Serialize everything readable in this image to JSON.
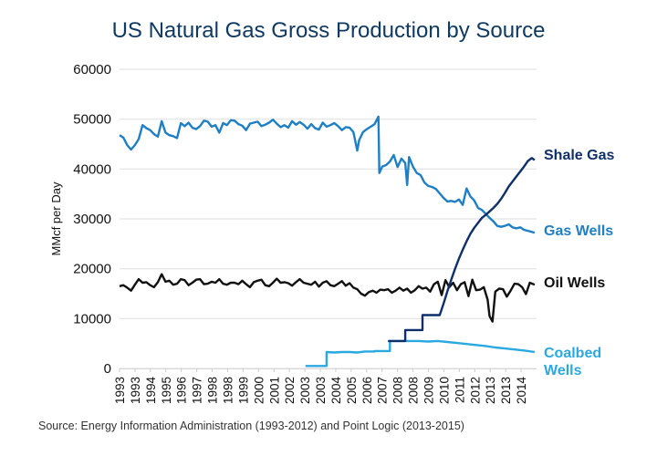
{
  "chart_data": {
    "type": "line",
    "title": "US Natural Gas Gross Production by Source",
    "xlabel": "",
    "ylabel": "MMcf per Day",
    "ylim": [
      0,
      60000
    ],
    "xlim": [
      1993.0,
      2014.75
    ],
    "yticks": [
      0,
      10000,
      20000,
      30000,
      40000,
      50000,
      60000
    ],
    "ytick_labels": [
      "0",
      "10000",
      "20000",
      "30000",
      "40000",
      "50000",
      "60000"
    ],
    "xtick_labels": [
      "1993",
      "1993",
      "1994",
      "1995",
      "1996",
      "1997",
      "1998",
      "1998",
      "1999",
      "2000",
      "2001",
      "2002",
      "2003",
      "2003",
      "2004",
      "2005",
      "2006",
      "2007",
      "2008",
      "2008",
      "2009",
      "2010",
      "2011",
      "2012",
      "2013",
      "2013",
      "2014"
    ],
    "grid": true,
    "legend": "inline-right",
    "source": "Source: Energy Information Administration (1993-2012) and Point Logic (2013-2015)",
    "series": [
      {
        "name": "Shale Gas",
        "label_lines": [
          "Shale Gas"
        ],
        "color": "#0f2f6b",
        "x": [
          2007.0,
          2007.9,
          2007.9,
          2008.8,
          2008.8,
          2009.7,
          2009.9,
          2010.1,
          2010.3,
          2010.5,
          2010.7,
          2010.9,
          2011.1,
          2011.3,
          2011.5,
          2011.7,
          2011.9,
          2012.1,
          2012.3,
          2012.5,
          2012.7,
          2012.9,
          2013.1,
          2013.3,
          2013.5,
          2013.7,
          2013.9,
          2014.1,
          2014.3,
          2014.5,
          2014.65
        ],
        "values": [
          5500,
          5500,
          7700,
          7700,
          10700,
          10700,
          13000,
          15500,
          17800,
          20000,
          22000,
          23800,
          25500,
          27000,
          28200,
          29200,
          30200,
          30800,
          31500,
          32200,
          33000,
          34000,
          35200,
          36500,
          37500,
          38500,
          39500,
          40500,
          41600,
          42200,
          41800
        ]
      },
      {
        "name": "Gas Wells",
        "label_lines": [
          "Gas Wells"
        ],
        "color": "#1f7fc4",
        "x": [
          1993.0,
          1993.2,
          1993.4,
          1993.6,
          1993.8,
          1994.0,
          1994.2,
          1994.4,
          1994.6,
          1994.8,
          1995.0,
          1995.2,
          1995.4,
          1995.6,
          1995.8,
          1996.0,
          1996.2,
          1996.4,
          1996.6,
          1996.8,
          1997.0,
          1997.2,
          1997.4,
          1997.6,
          1997.8,
          1998.0,
          1998.2,
          1998.4,
          1998.6,
          1998.8,
          1999.0,
          1999.2,
          1999.4,
          1999.6,
          1999.8,
          2000.0,
          2000.2,
          2000.4,
          2000.6,
          2000.8,
          2001.0,
          2001.2,
          2001.4,
          2001.6,
          2001.8,
          2002.0,
          2002.2,
          2002.4,
          2002.6,
          2002.8,
          2003.0,
          2003.2,
          2003.4,
          2003.6,
          2003.8,
          2004.0,
          2004.2,
          2004.4,
          2004.6,
          2004.8,
          2005.0,
          2005.2,
          2005.4,
          2005.5,
          2005.7,
          2005.9,
          2006.1,
          2006.3,
          2006.5,
          2006.55,
          2006.7,
          2006.9,
          2007.1,
          2007.3,
          2007.5,
          2007.7,
          2007.9,
          2008.0,
          2008.1,
          2008.3,
          2008.5,
          2008.7,
          2008.9,
          2009.1,
          2009.3,
          2009.5,
          2009.7,
          2009.9,
          2010.1,
          2010.3,
          2010.5,
          2010.7,
          2010.9,
          2011.1,
          2011.3,
          2011.5,
          2011.7,
          2011.9,
          2012.1,
          2012.3,
          2012.5,
          2012.7,
          2012.9,
          2013.1,
          2013.3,
          2013.5,
          2013.7,
          2013.9,
          2014.1,
          2014.3,
          2014.5,
          2014.65
        ],
        "values": [
          46800,
          46300,
          44800,
          43900,
          44800,
          46000,
          48800,
          48200,
          47800,
          47000,
          46500,
          49600,
          47300,
          46800,
          46600,
          46200,
          49200,
          48600,
          49300,
          48300,
          48000,
          48600,
          49700,
          49500,
          48500,
          48800,
          47300,
          49200,
          48800,
          49800,
          49700,
          49000,
          48700,
          47800,
          49100,
          49300,
          49500,
          48600,
          48900,
          49300,
          49900,
          49100,
          48400,
          48800,
          48300,
          49600,
          48900,
          49400,
          48900,
          48100,
          49000,
          48200,
          47900,
          49300,
          48500,
          48800,
          49200,
          48600,
          47800,
          48400,
          48300,
          47400,
          43700,
          45800,
          47400,
          48000,
          48500,
          49000,
          50500,
          39200,
          40500,
          40800,
          41500,
          42800,
          40400,
          42100,
          41200,
          36800,
          42400,
          40500,
          39200,
          38800,
          37300,
          36600,
          36400,
          36000,
          35100,
          34200,
          33500,
          33600,
          33400,
          33900,
          32800,
          36100,
          34500,
          33700,
          32200,
          31800,
          31000,
          30200,
          29500,
          28600,
          28400,
          28600,
          28900,
          28300,
          28100,
          28300,
          27800,
          27600,
          27400,
          27200
        ]
      },
      {
        "name": "Oil Wells",
        "label_lines": [
          "Oil Wells"
        ],
        "color": "#111111",
        "x": [
          1993.0,
          1993.2,
          1993.4,
          1993.6,
          1993.8,
          1994.0,
          1994.2,
          1994.4,
          1994.6,
          1994.8,
          1995.0,
          1995.2,
          1995.4,
          1995.6,
          1995.8,
          1996.0,
          1996.2,
          1996.4,
          1996.6,
          1996.8,
          1997.0,
          1997.2,
          1997.4,
          1997.6,
          1997.8,
          1998.0,
          1998.2,
          1998.4,
          1998.6,
          1998.8,
          1999.0,
          1999.2,
          1999.4,
          1999.6,
          1999.8,
          2000.0,
          2000.2,
          2000.4,
          2000.6,
          2000.8,
          2001.0,
          2001.2,
          2001.4,
          2001.6,
          2001.8,
          2002.0,
          2002.2,
          2002.4,
          2002.6,
          2002.8,
          2003.0,
          2003.2,
          2003.4,
          2003.6,
          2003.8,
          2004.0,
          2004.2,
          2004.4,
          2004.6,
          2004.8,
          2005.0,
          2005.2,
          2005.4,
          2005.6,
          2005.8,
          2006.0,
          2006.2,
          2006.4,
          2006.6,
          2006.8,
          2007.0,
          2007.2,
          2007.4,
          2007.6,
          2007.8,
          2008.0,
          2008.2,
          2008.4,
          2008.6,
          2008.8,
          2009.0,
          2009.2,
          2009.4,
          2009.6,
          2009.8,
          2010.0,
          2010.2,
          2010.4,
          2010.6,
          2010.8,
          2011.0,
          2011.2,
          2011.4,
          2011.6,
          2011.8,
          2012.0,
          2012.2,
          2012.3,
          2012.45,
          2012.6,
          2012.8,
          2013.0,
          2013.2,
          2013.4,
          2013.6,
          2013.8,
          2014.0,
          2014.2,
          2014.4,
          2014.65
        ],
        "values": [
          16500,
          16700,
          16200,
          15600,
          16800,
          17900,
          17200,
          17300,
          16700,
          16300,
          17300,
          18900,
          17400,
          17600,
          16800,
          17000,
          17900,
          17700,
          16700,
          17200,
          17800,
          17900,
          16900,
          17000,
          17400,
          17200,
          17900,
          17000,
          16800,
          17200,
          17200,
          16900,
          17600,
          16900,
          16300,
          17300,
          17600,
          17800,
          16700,
          16500,
          17200,
          18000,
          17200,
          17300,
          17100,
          16600,
          17300,
          17900,
          17200,
          17000,
          16800,
          17400,
          16400,
          17200,
          17500,
          16700,
          16500,
          17000,
          17500,
          16600,
          17100,
          16200,
          15900,
          15000,
          14600,
          15300,
          15600,
          15200,
          15800,
          15700,
          15900,
          15200,
          15600,
          16200,
          15600,
          16000,
          15200,
          15700,
          16500,
          16000,
          16200,
          15400,
          16900,
          17400,
          14700,
          17700,
          16300,
          17200,
          15700,
          16900,
          17300,
          14500,
          17800,
          15700,
          15800,
          16300,
          13800,
          10500,
          9400,
          15400,
          16000,
          15900,
          14400,
          15600,
          17000,
          16900,
          16300,
          14900,
          17200,
          16800
        ]
      },
      {
        "name": "Coalbed Wells",
        "label_lines": [
          "Coalbed",
          "Wells"
        ],
        "color": "#2aa8e0",
        "x": [
          2002.7,
          2003.8,
          2003.8,
          2004.2,
          2004.6,
          2005.0,
          2005.4,
          2005.8,
          2006.3,
          2006.3,
          2006.9,
          2007.1,
          2007.1,
          2007.6,
          2008.1,
          2008.6,
          2009.1,
          2009.6,
          2010.1,
          2010.6,
          2011.1,
          2011.6,
          2012.1,
          2012.6,
          2013.1,
          2013.6,
          2014.1,
          2014.65
        ],
        "values": [
          500,
          500,
          3300,
          3200,
          3300,
          3300,
          3200,
          3400,
          3400,
          3500,
          3500,
          3500,
          5500,
          5500,
          5500,
          5500,
          5400,
          5500,
          5300,
          5100,
          4900,
          4700,
          4500,
          4200,
          4000,
          3800,
          3600,
          3300
        ]
      }
    ]
  }
}
